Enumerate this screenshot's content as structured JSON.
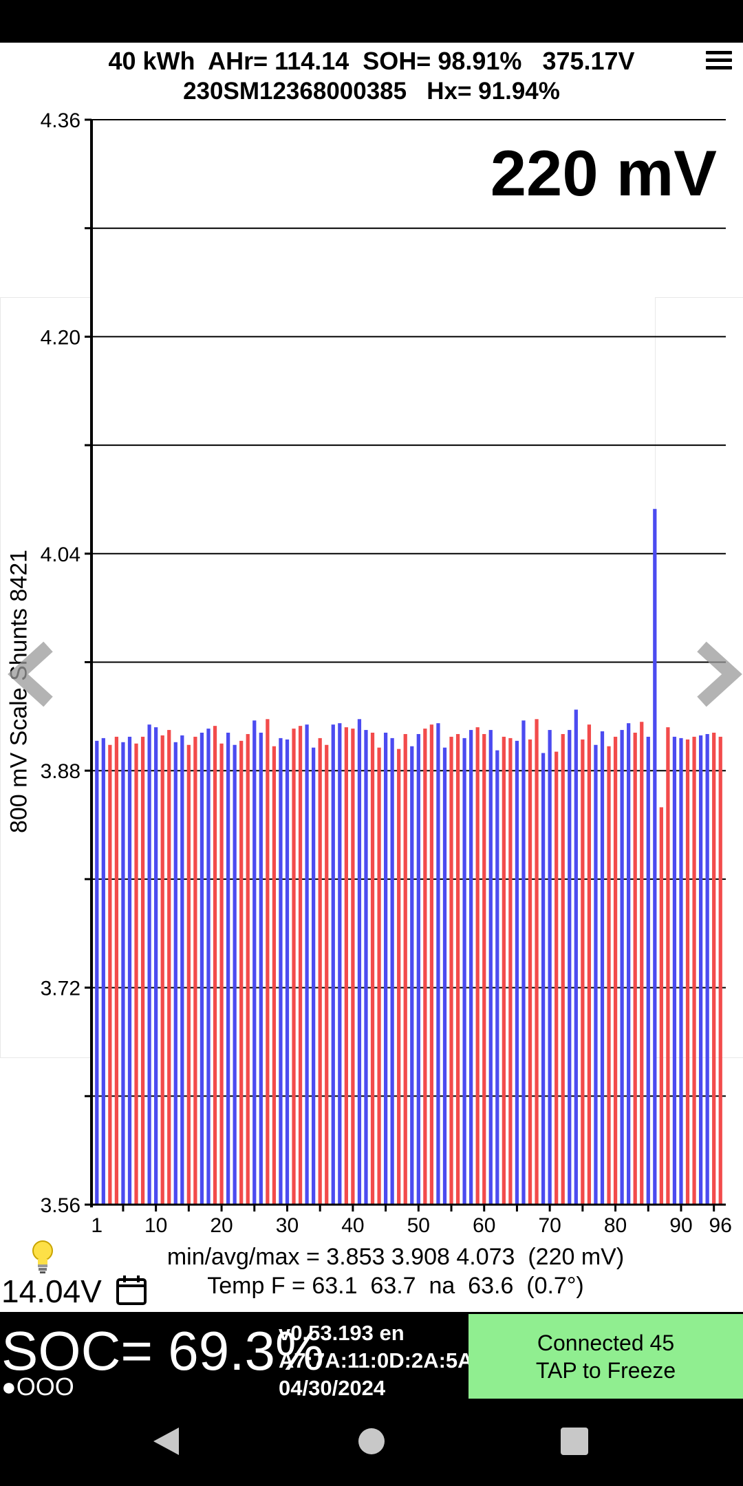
{
  "header": {
    "line1": "40 kWh  AHr= 114.14  SOH= 98.91%   375.17V",
    "line2": "230SM12368000385   Hx= 91.94%"
  },
  "big_delta": "220 mV",
  "y_axis_title": "800 mV Scale  Shunts 8421",
  "stats": {
    "line1": "min/avg/max = 3.853 3.908 4.073  (220 mV)",
    "line2": "Temp F = 63.1  63.7  na  63.6  (0.7°)"
  },
  "aux_voltage": "14.04V",
  "soc": "SOC= 69.3%",
  "soc_dots": "●OOO",
  "version": {
    "line1": "v0.53.193 en",
    "line2": "A7:7A:11:0D:2A:5A",
    "line3": "04/30/2024"
  },
  "connect": {
    "line1": "Connected 45",
    "line2": "TAP to Freeze"
  },
  "colors": {
    "bar_a": "#4b4bf0",
    "bar_b": "#f24b4b"
  },
  "icons": {
    "menu": "hamburger-menu-icon",
    "bulb": "lightbulb-icon",
    "calendar": "calendar-icon",
    "prev": "chevron-left-icon",
    "next": "chevron-right-icon",
    "back": "triangle-back-icon",
    "home": "circle-home-icon",
    "recents": "square-recents-icon"
  },
  "chart_data": {
    "type": "bar",
    "ylim": [
      3.56,
      4.36
    ],
    "y_tick_labels": [
      "4.36",
      "4.20",
      "4.04",
      "3.88",
      "3.72",
      "3.56"
    ],
    "y_tick_values": [
      4.36,
      4.2,
      4.04,
      3.88,
      3.72,
      3.56
    ],
    "x_tick_labels": [
      "1",
      "10",
      "20",
      "30",
      "40",
      "50",
      "60",
      "70",
      "80",
      "90",
      "96"
    ],
    "x_tick_values": [
      1,
      10,
      20,
      30,
      40,
      50,
      60,
      70,
      80,
      90,
      96
    ],
    "grid": true,
    "series": [
      {
        "values": [
          3.902,
          3.904,
          3.899,
          3.905,
          3.901,
          3.905,
          3.9,
          3.905,
          3.914,
          3.912,
          3.906,
          3.91,
          3.901,
          3.906,
          3.899,
          3.905,
          3.908,
          3.911,
          3.913,
          3.9,
          3.908,
          3.899,
          3.902,
          3.907,
          3.917,
          3.908,
          3.918,
          3.898,
          3.904,
          3.903,
          3.911,
          3.913,
          3.914,
          3.897,
          3.904,
          3.899,
          3.914,
          3.915,
          3.912,
          3.911,
          3.918,
          3.91,
          3.908,
          3.897,
          3.908,
          3.904,
          3.896,
          3.907,
          3.898,
          3.907,
          3.911,
          3.914,
          3.915,
          3.897,
          3.905,
          3.907,
          3.904,
          3.91,
          3.912,
          3.907,
          3.91,
          3.895,
          3.905,
          3.904,
          3.902,
          3.917,
          3.903,
          3.918,
          3.893,
          3.91,
          3.894,
          3.907,
          3.91,
          3.925,
          3.903,
          3.914,
          3.899,
          3.909,
          3.898,
          3.905,
          3.91,
          3.915,
          3.908,
          3.916,
          3.905,
          4.073,
          3.853,
          3.912,
          3.905,
          3.904,
          3.903,
          3.905,
          3.906,
          3.907,
          3.908,
          3.905
        ]
      }
    ]
  }
}
